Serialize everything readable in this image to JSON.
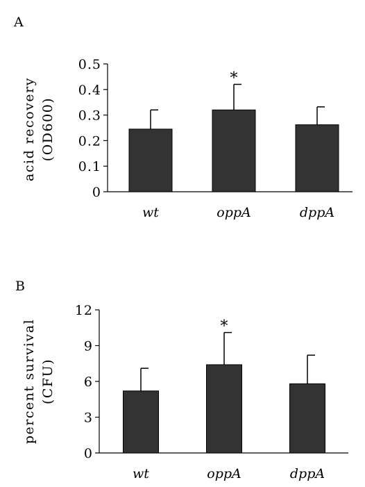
{
  "chart_data": [
    {
      "type": "bar",
      "panel_label": "A",
      "categories": [
        "wt",
        "oppA",
        "dppA"
      ],
      "values": [
        0.245,
        0.32,
        0.262
      ],
      "errors": [
        0.075,
        0.1,
        0.07
      ],
      "significance": [
        "",
        "*",
        ""
      ],
      "ylabel_line1": "acid recovery",
      "ylabel_line2": "(OD600)",
      "ylim": [
        0,
        0.5
      ],
      "yticks": [
        0,
        0.1,
        0.2,
        0.3,
        0.4,
        0.5
      ],
      "ytick_labels": [
        "0",
        "0.1",
        "0.2",
        "0.3",
        "0.4",
        "0.5"
      ],
      "bar_color": "#333333",
      "grid": false
    },
    {
      "type": "bar",
      "panel_label": "B",
      "categories": [
        "wt",
        "oppA",
        "dppA"
      ],
      "values": [
        5.2,
        7.4,
        5.8
      ],
      "errors": [
        1.9,
        2.7,
        2.4
      ],
      "significance": [
        "",
        "*",
        ""
      ],
      "ylabel_line1": "percent survival",
      "ylabel_line2": "(CFU)",
      "ylim": [
        0,
        12
      ],
      "yticks": [
        0,
        3,
        6,
        9,
        12
      ],
      "ytick_labels": [
        "0",
        "3",
        "6",
        "9",
        "12"
      ],
      "bar_color": "#333333",
      "grid": false
    }
  ]
}
